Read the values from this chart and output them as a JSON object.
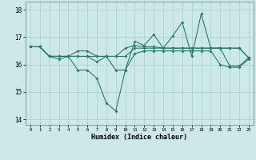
{
  "background_color": "#cce8e8",
  "grid_color": "#aacece",
  "line_color": "#2a7a6e",
  "xlabel": "Humidex (Indice chaleur)",
  "xlim": [
    -0.5,
    23.5
  ],
  "ylim": [
    13.8,
    18.3
  ],
  "yticks": [
    14,
    15,
    16,
    17,
    18
  ],
  "xticks": [
    0,
    1,
    2,
    3,
    4,
    5,
    6,
    7,
    8,
    9,
    10,
    11,
    12,
    13,
    14,
    15,
    16,
    17,
    18,
    19,
    20,
    21,
    22,
    23
  ],
  "line1_y": [
    16.65,
    16.65,
    16.3,
    16.3,
    16.3,
    16.5,
    16.5,
    16.3,
    16.3,
    16.3,
    16.6,
    16.7,
    16.65,
    16.65,
    16.6,
    16.6,
    16.6,
    16.6,
    16.6,
    16.6,
    16.6,
    16.6,
    16.6,
    16.25
  ],
  "line2_y": [
    16.65,
    16.65,
    16.3,
    16.3,
    16.3,
    15.8,
    15.8,
    15.5,
    14.6,
    14.3,
    15.8,
    16.85,
    16.7,
    17.1,
    16.6,
    17.05,
    17.55,
    16.3,
    17.85,
    16.6,
    16.6,
    15.95,
    15.95,
    16.25
  ],
  "line3_y": [
    16.65,
    16.65,
    16.3,
    16.2,
    16.3,
    16.3,
    16.3,
    16.1,
    16.3,
    15.8,
    15.8,
    16.4,
    16.5,
    16.5,
    16.5,
    16.5,
    16.5,
    16.5,
    16.5,
    16.5,
    16.0,
    15.9,
    15.9,
    16.2
  ],
  "line4_y": [
    16.65,
    16.65,
    16.3,
    16.3,
    16.3,
    16.3,
    16.3,
    16.3,
    16.3,
    16.3,
    16.3,
    16.6,
    16.6,
    16.6,
    16.6,
    16.6,
    16.6,
    16.6,
    16.6,
    16.6,
    16.6,
    16.6,
    16.6,
    16.25
  ]
}
